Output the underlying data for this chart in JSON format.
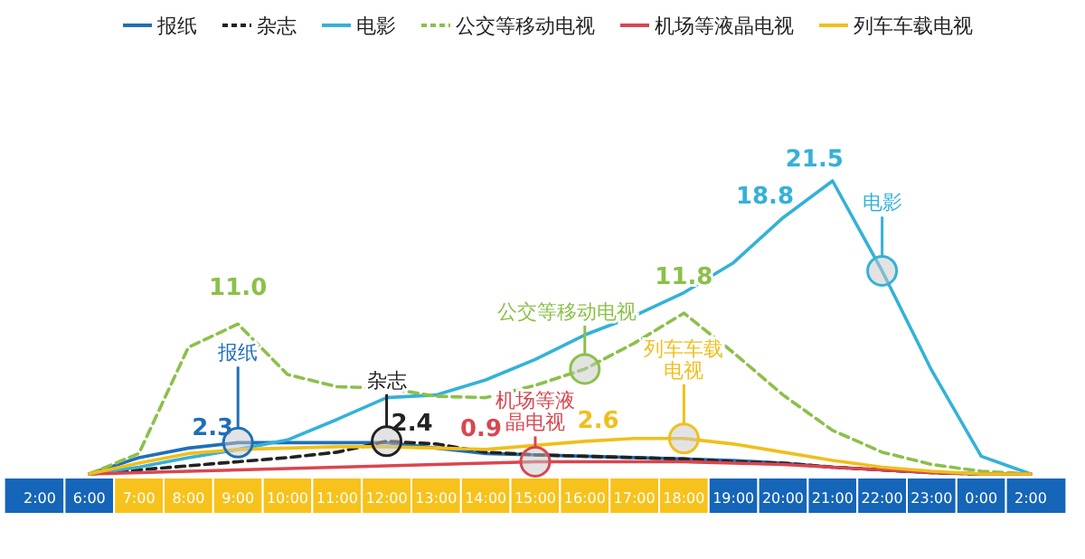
{
  "chart_data": {
    "type": "line",
    "categories": [
      "2:00",
      "6:00",
      "7:00",
      "8:00",
      "9:00",
      "10:00",
      "11:00",
      "12:00",
      "13:00",
      "14:00",
      "15:00",
      "16:00",
      "17:00",
      "18:00",
      "19:00",
      "20:00",
      "21:00",
      "22:00",
      "23:00",
      "0:00",
      "2:00"
    ],
    "tick_labels": "x",
    "grid": false,
    "legend": "top",
    "marker": "none",
    "series": [
      {
        "name": "报纸",
        "color": "#1f6fb8",
        "line_style": "solid",
        "values": [
          null,
          0,
          1.2,
          1.9,
          2.3,
          2.3,
          2.3,
          2.3,
          1.9,
          1.5,
          1.4,
          1.3,
          1.2,
          1.1,
          1.0,
          0.8,
          0.5,
          0.3,
          0.1,
          0,
          0
        ],
        "value_labels": [
          null,
          null,
          null,
          null,
          "2.3",
          null,
          null,
          null,
          null,
          null,
          null,
          null,
          null,
          null,
          null,
          null,
          null,
          null,
          null,
          null,
          null
        ]
      },
      {
        "name": "杂志",
        "color": "#222222",
        "line_style": "dashed",
        "values": [
          null,
          0,
          0.3,
          0.6,
          0.9,
          1.2,
          1.6,
          2.4,
          2.2,
          1.6,
          1.4,
          1.3,
          1.2,
          1.1,
          0.9,
          0.8,
          0.5,
          0.3,
          0.1,
          0,
          0
        ],
        "value_labels": [
          null,
          null,
          null,
          null,
          null,
          null,
          null,
          "2.4",
          null,
          null,
          null,
          null,
          null,
          null,
          null,
          null,
          null,
          null,
          null,
          null,
          null
        ]
      },
      {
        "name": "电影",
        "color": "#35b1d8",
        "line_style": "solid",
        "values": [
          null,
          0,
          0.5,
          1.2,
          1.8,
          2.5,
          4.0,
          5.6,
          5.8,
          6.9,
          8.4,
          10.2,
          11.6,
          13.3,
          15.5,
          18.8,
          21.5,
          14.9,
          7.6,
          1.3,
          0
        ],
        "value_labels": [
          null,
          null,
          null,
          null,
          null,
          null,
          null,
          null,
          null,
          null,
          null,
          null,
          null,
          null,
          null,
          "18.8",
          "21.5",
          null,
          null,
          null,
          null
        ]
      },
      {
        "name": "公交等移动电视",
        "color": "#8cc04a",
        "line_style": "dashed",
        "values": [
          null,
          0,
          1.5,
          9.3,
          11.0,
          7.3,
          6.4,
          6.3,
          5.7,
          5.6,
          6.5,
          7.7,
          9.6,
          11.8,
          8.9,
          5.8,
          3.2,
          1.6,
          0.7,
          0.2,
          0
        ],
        "value_labels": [
          null,
          null,
          null,
          null,
          "11.0",
          null,
          null,
          null,
          null,
          null,
          null,
          null,
          null,
          "11.8",
          null,
          null,
          null,
          null,
          null,
          null,
          null
        ]
      },
      {
        "name": "机场等液晶电视",
        "color": "#d9464f",
        "line_style": "solid",
        "values": [
          null,
          0,
          0.1,
          0.2,
          0.3,
          0.4,
          0.5,
          0.6,
          0.7,
          0.8,
          0.9,
          0.9,
          0.9,
          0.9,
          0.8,
          0.7,
          0.5,
          0.3,
          0.1,
          0,
          0
        ],
        "value_labels": [
          null,
          null,
          null,
          null,
          null,
          null,
          null,
          null,
          null,
          null,
          "0.9",
          null,
          null,
          null,
          null,
          null,
          null,
          null,
          null,
          null,
          null
        ]
      },
      {
        "name": "列车车载电视",
        "color": "#f0bf1a",
        "line_style": "solid",
        "values": [
          null,
          0,
          0.8,
          1.5,
          1.8,
          1.9,
          2.0,
          2.0,
          1.9,
          1.8,
          2.1,
          2.4,
          2.6,
          2.6,
          2.2,
          1.6,
          1.0,
          0.5,
          0.2,
          0,
          0
        ],
        "value_labels": [
          null,
          null,
          null,
          null,
          null,
          null,
          null,
          null,
          null,
          null,
          null,
          null,
          "2.6",
          null,
          null,
          null,
          null,
          null,
          null,
          null,
          null
        ]
      }
    ],
    "annotations": [
      {
        "text": "报纸",
        "x": "9:00",
        "y": 2.3
      },
      {
        "text": "杂志",
        "x": "12:00",
        "y": 2.4
      },
      {
        "text": "机场等液晶电视",
        "x": "15:00",
        "y": 0.9
      },
      {
        "text": "公交等移动电视",
        "x": "16:00",
        "y": 7.7
      },
      {
        "text": "列车车载电视",
        "x": "18:00",
        "y": 2.6
      },
      {
        "text": "电影",
        "x": "22:00",
        "y": 14.9
      }
    ]
  }
}
